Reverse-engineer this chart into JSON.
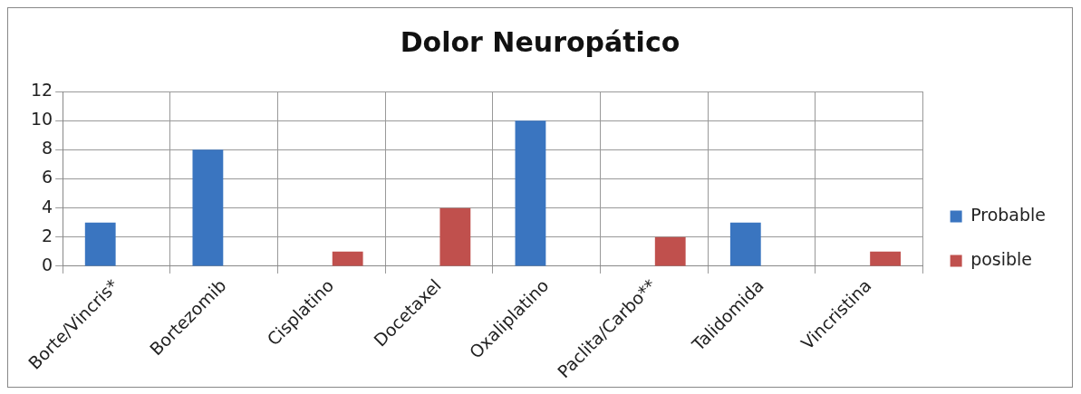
{
  "chart_data": {
    "type": "bar",
    "title": "Dolor Neuropático",
    "categories": [
      "Borte/Vincris*",
      "Bortezomib",
      "Cisplatino",
      "Docetaxel",
      "Oxaliplatino",
      "Paclita/Carbo**",
      "Talidomida",
      "Vincristina"
    ],
    "series": [
      {
        "name": "Probable",
        "color": "#3a75c0",
        "values": [
          3,
          8,
          null,
          null,
          10,
          null,
          3,
          null
        ]
      },
      {
        "name": "posible",
        "color": "#c0504d",
        "values": [
          null,
          null,
          1,
          4,
          null,
          2,
          null,
          1
        ]
      }
    ],
    "ylim": [
      0,
      12
    ],
    "yticks": [
      0,
      2,
      4,
      6,
      8,
      10,
      12
    ],
    "grid": true,
    "legend": "right"
  }
}
